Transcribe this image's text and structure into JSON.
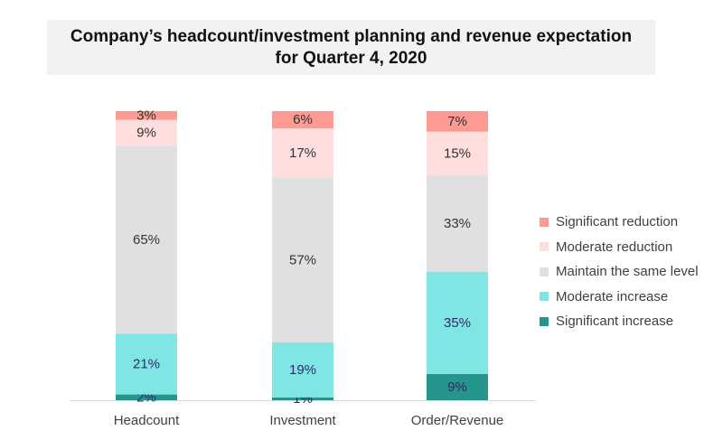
{
  "chart_data": {
    "type": "bar",
    "stacked": true,
    "title": "Company’s headcount/investment planning and revenue expectation for Quarter 4, 2020",
    "title_lines": [
      "Company’s headcount/investment planning and revenue expectation",
      "for Quarter 4, 2020"
    ],
    "xlabel": "",
    "ylabel": "",
    "categories": [
      "Headcount",
      "Investment",
      "Order/Revenue"
    ],
    "series": [
      {
        "name": "Significant increase",
        "color": "#26968c",
        "label_color": "#2e2a6b",
        "values": [
          2,
          1,
          9
        ]
      },
      {
        "name": "Moderate increase",
        "color": "#80e6e3",
        "label_color": "#2e2a6b",
        "values": [
          21,
          19,
          35
        ]
      },
      {
        "name": "Maintain the same level",
        "color": "#e0e0e0",
        "label_color": "#333333",
        "values": [
          65,
          57,
          33
        ]
      },
      {
        "name": "Moderate reduction",
        "color": "#ffdfdd",
        "label_color": "#333333",
        "values": [
          9,
          17,
          15
        ]
      },
      {
        "name": "Significant reduction",
        "color": "#fd9a91",
        "label_color": "#333333",
        "values": [
          3,
          6,
          7
        ]
      }
    ],
    "value_suffix": "%",
    "legend_position": "right",
    "legend_order": [
      "Significant reduction",
      "Moderate reduction",
      "Maintain the same level",
      "Moderate increase",
      "Significant increase"
    ],
    "grid": false
  }
}
